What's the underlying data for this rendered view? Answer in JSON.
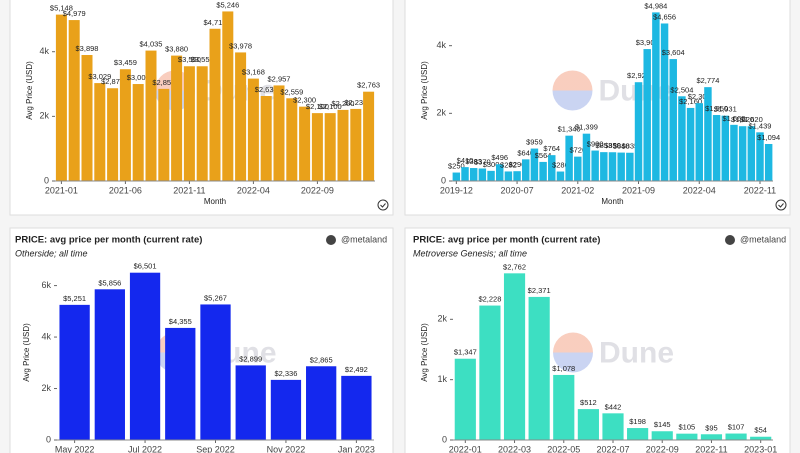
{
  "watermark": "Dune",
  "author": "@metaland",
  "chart_data": [
    {
      "type": "bar",
      "color": "#e9a11a",
      "x_label": "Month",
      "y_label": "Avg Price (USD)",
      "categories": [
        "2021-01",
        null,
        null,
        null,
        null,
        "2021-06",
        null,
        null,
        null,
        null,
        "2021-11",
        null,
        null,
        null,
        null,
        "2022-04",
        null,
        null,
        null,
        null,
        "2022-09",
        null,
        null,
        null,
        null
      ],
      "values": [
        5148,
        4979,
        3898,
        3029,
        2870,
        3459,
        3000,
        4035,
        2850,
        3880,
        3550,
        3550,
        4710,
        5246,
        3978,
        3168,
        2630,
        2957,
        2559,
        2300,
        2100,
        2100,
        2200,
        2230,
        2763
      ],
      "value_labels": [
        "$5,148",
        "$4,979",
        "$3,898",
        "$3,029",
        "$2,870",
        "$3,459",
        "$3,000",
        "$4,035",
        "$2,850",
        "$3,880",
        "$3,550",
        "$3,550",
        "$4,710",
        "$5,246",
        "$3,978",
        "$3,168",
        "$2,630",
        "$2,957",
        "$2,559",
        "$2,300",
        "$2,100",
        "$2,100",
        "$2,200",
        "$2,230",
        "$2,763"
      ],
      "ylim": [
        0,
        5600
      ],
      "yticks": [
        0,
        {
          "value": 2000,
          "label": "2k"
        },
        {
          "value": 4000,
          "label": "4k"
        }
      ]
    },
    {
      "type": "bar",
      "color": "#1db8e2",
      "x_label": "Month",
      "y_label": "Avg Price (USD)",
      "categories": [
        "2019-12",
        null,
        null,
        null,
        null,
        null,
        null,
        "2020-07",
        null,
        null,
        null,
        null,
        null,
        null,
        "2021-02",
        null,
        null,
        null,
        null,
        null,
        null,
        "2021-09",
        null,
        null,
        null,
        null,
        null,
        null,
        "2022-04",
        null,
        null,
        null,
        null,
        null,
        null,
        "2022-11",
        null
      ],
      "values": [
        250,
        410,
        383,
        370,
        300,
        496,
        282,
        290,
        640,
        959,
        564,
        764,
        280,
        1340,
        720,
        1399,
        900,
        853,
        850,
        840,
        835,
        2920,
        3900,
        4984,
        4656,
        3604,
        2504,
        2160,
        2300,
        2774,
        1950,
        1931,
        1660,
        1620,
        1620,
        1439,
        1094
      ],
      "value_labels": [
        "$250",
        "$410",
        "$383",
        "$370",
        "$300",
        "$496",
        "$282",
        "$290",
        "$640",
        "$959",
        "$564",
        "$764",
        "$280",
        "$1,340",
        "$720",
        "$1,399",
        "$900",
        "$853",
        "$850",
        "$840",
        "$835",
        "$2,920",
        "$3,900",
        "$4,984",
        "$4,656",
        "$3,604",
        "$2,504",
        "$2,160",
        "$2,300",
        "$2,774",
        "$1,950",
        "$1,931",
        "$1,660",
        "$1,620",
        "$1,620",
        "$1,439",
        "$1,094"
      ],
      "ylim": [
        0,
        5350
      ],
      "yticks": [
        0,
        {
          "value": 2000,
          "label": "2k"
        },
        {
          "value": 4000,
          "label": "4k"
        }
      ]
    },
    {
      "type": "bar",
      "color": "#1428ee",
      "title": "PRICE: avg price per month (current rate)",
      "subtitle": "Otherside; all time",
      "y_label": "Avg Price (USD)",
      "categories": [
        "May 2022",
        null,
        "Jul 2022",
        null,
        "Sep 2022",
        null,
        "Nov 2022",
        null,
        "Jan 2023"
      ],
      "values": [
        5251,
        5856,
        6501,
        4355,
        5267,
        2899,
        2336,
        2865,
        2492
      ],
      "value_labels": [
        "$5,251",
        "$5,856",
        "$6,501",
        "$4,355",
        "$5,267",
        "$2,899",
        "$2,336",
        "$2,865",
        "$2,492"
      ],
      "ylim": [
        0,
        6800
      ],
      "yticks": [
        0,
        {
          "value": 2000,
          "label": "2k"
        },
        {
          "value": 4000,
          "label": "4k"
        },
        {
          "value": 6000,
          "label": "6k"
        }
      ]
    },
    {
      "type": "bar",
      "color": "#3ddfc2",
      "title": "PRICE: avg price per month (current rate)",
      "subtitle": "Metroverse Genesis; all time",
      "y_label": "Avg Price (USD)",
      "categories": [
        "2022-01",
        null,
        "2022-03",
        null,
        "2022-05",
        null,
        "2022-07",
        null,
        "2022-09",
        null,
        "2022-11",
        null,
        "2023-01"
      ],
      "values": [
        1347,
        2228,
        2762,
        2371,
        1078,
        512,
        442,
        198,
        145,
        105,
        95,
        107,
        54
      ],
      "value_labels": [
        "$1,347",
        "$2,228",
        "$2,762",
        "$2,371",
        "$1,078",
        "$512",
        "$442",
        "$198",
        "$145",
        "$105",
        "$95",
        "$107",
        "$54"
      ],
      "ylim": [
        0,
        2900
      ],
      "yticks": [
        0,
        {
          "value": 1000,
          "label": "1k"
        },
        {
          "value": 2000,
          "label": "2k"
        }
      ]
    }
  ]
}
